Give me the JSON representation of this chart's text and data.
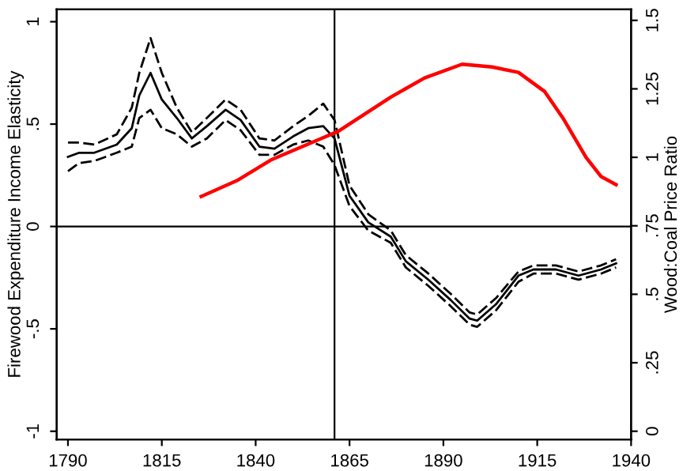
{
  "chart_data": {
    "type": "line",
    "xlabel": null,
    "ylabel": "Firewood Expenditure Income Elasticity",
    "y2label": "Wood:Coal Price Ratio",
    "xlim": [
      1787,
      1940
    ],
    "xticks": [
      1790,
      1815,
      1840,
      1865,
      1890,
      1915,
      1940
    ],
    "ylim": [
      -1.04,
      1.06
    ],
    "yticks": [
      {
        "value": -1,
        "label": "-1"
      },
      {
        "value": -0.5,
        "label": "-.5"
      },
      0,
      {
        "value": 0.5,
        "label": ".5"
      },
      1
    ],
    "y2lim": [
      -0.03,
      1.54
    ],
    "y2ticks": [
      0,
      {
        "value": 0.25,
        "label": ".25"
      },
      {
        "value": 0.5,
        "label": ".5"
      },
      {
        "value": 0.75,
        "label": ".75"
      },
      1,
      1.25,
      1.5
    ],
    "grid": false,
    "legend": false,
    "marker": "none",
    "ref_lines": [
      {
        "axis": "y",
        "value": 0,
        "color": "#000000",
        "line_style": "solid"
      },
      {
        "axis": "x",
        "value": 1861,
        "color": "#000000",
        "line_style": "solid"
      }
    ],
    "series": [
      {
        "color": "#000000",
        "line_style": "solid",
        "x": [
          1790,
          1793,
          1797,
          1803,
          1807,
          1809,
          1812,
          1815,
          1819,
          1823,
          1827,
          1832,
          1836,
          1841,
          1845,
          1850,
          1854,
          1858,
          1861,
          1865,
          1870,
          1876,
          1880,
          1886,
          1892,
          1897,
          1899,
          1904,
          1910,
          1914,
          1920,
          1926,
          1932,
          1936
        ],
        "values": [
          0.34,
          0.36,
          0.36,
          0.4,
          0.48,
          0.64,
          0.75,
          0.62,
          0.53,
          0.43,
          0.49,
          0.57,
          0.52,
          0.39,
          0.38,
          0.44,
          0.48,
          0.49,
          0.43,
          0.15,
          0.02,
          -0.05,
          -0.17,
          -0.26,
          -0.36,
          -0.45,
          -0.46,
          -0.38,
          -0.24,
          -0.21,
          -0.21,
          -0.24,
          -0.21,
          -0.18
        ]
      },
      {
        "color": "#000000",
        "line_style": "dashed",
        "x": [
          1790,
          1793,
          1797,
          1803,
          1807,
          1809,
          1812,
          1815,
          1819,
          1823,
          1827,
          1832,
          1836,
          1841,
          1845,
          1850,
          1854,
          1858,
          1861,
          1865,
          1870,
          1876,
          1880,
          1886,
          1892,
          1897,
          1899,
          1904,
          1910,
          1914,
          1920,
          1926,
          1932,
          1936
        ],
        "values": [
          0.41,
          0.41,
          0.4,
          0.45,
          0.58,
          0.75,
          0.92,
          0.75,
          0.58,
          0.46,
          0.53,
          0.62,
          0.57,
          0.43,
          0.42,
          0.49,
          0.54,
          0.6,
          0.52,
          0.2,
          0.06,
          -0.02,
          -0.14,
          -0.23,
          -0.33,
          -0.42,
          -0.43,
          -0.35,
          -0.22,
          -0.19,
          -0.19,
          -0.22,
          -0.19,
          -0.16
        ]
      },
      {
        "color": "#000000",
        "line_style": "dashed",
        "x": [
          1790,
          1793,
          1797,
          1803,
          1807,
          1809,
          1812,
          1815,
          1819,
          1823,
          1827,
          1832,
          1836,
          1841,
          1845,
          1850,
          1854,
          1858,
          1861,
          1865,
          1870,
          1876,
          1880,
          1886,
          1892,
          1897,
          1899,
          1904,
          1910,
          1914,
          1920,
          1926,
          1932,
          1936
        ],
        "values": [
          0.27,
          0.31,
          0.32,
          0.36,
          0.39,
          0.53,
          0.57,
          0.48,
          0.45,
          0.39,
          0.43,
          0.52,
          0.47,
          0.35,
          0.35,
          0.4,
          0.42,
          0.39,
          0.3,
          0.1,
          -0.02,
          -0.08,
          -0.2,
          -0.29,
          -0.39,
          -0.48,
          -0.49,
          -0.41,
          -0.27,
          -0.23,
          -0.23,
          -0.26,
          -0.23,
          -0.2
        ]
      },
      {
        "color": "#ff0000",
        "axis": "y2",
        "line_style": "solid",
        "x": [
          1825.5,
          1835,
          1844,
          1856,
          1862,
          1876,
          1885,
          1895,
          1903,
          1910,
          1917,
          1922,
          1928,
          1932,
          1936
        ],
        "values": [
          0.857,
          0.915,
          0.99,
          1.06,
          1.095,
          1.22,
          1.29,
          1.34,
          1.33,
          1.31,
          1.24,
          1.14,
          1.0,
          0.93,
          0.9
        ]
      }
    ]
  }
}
